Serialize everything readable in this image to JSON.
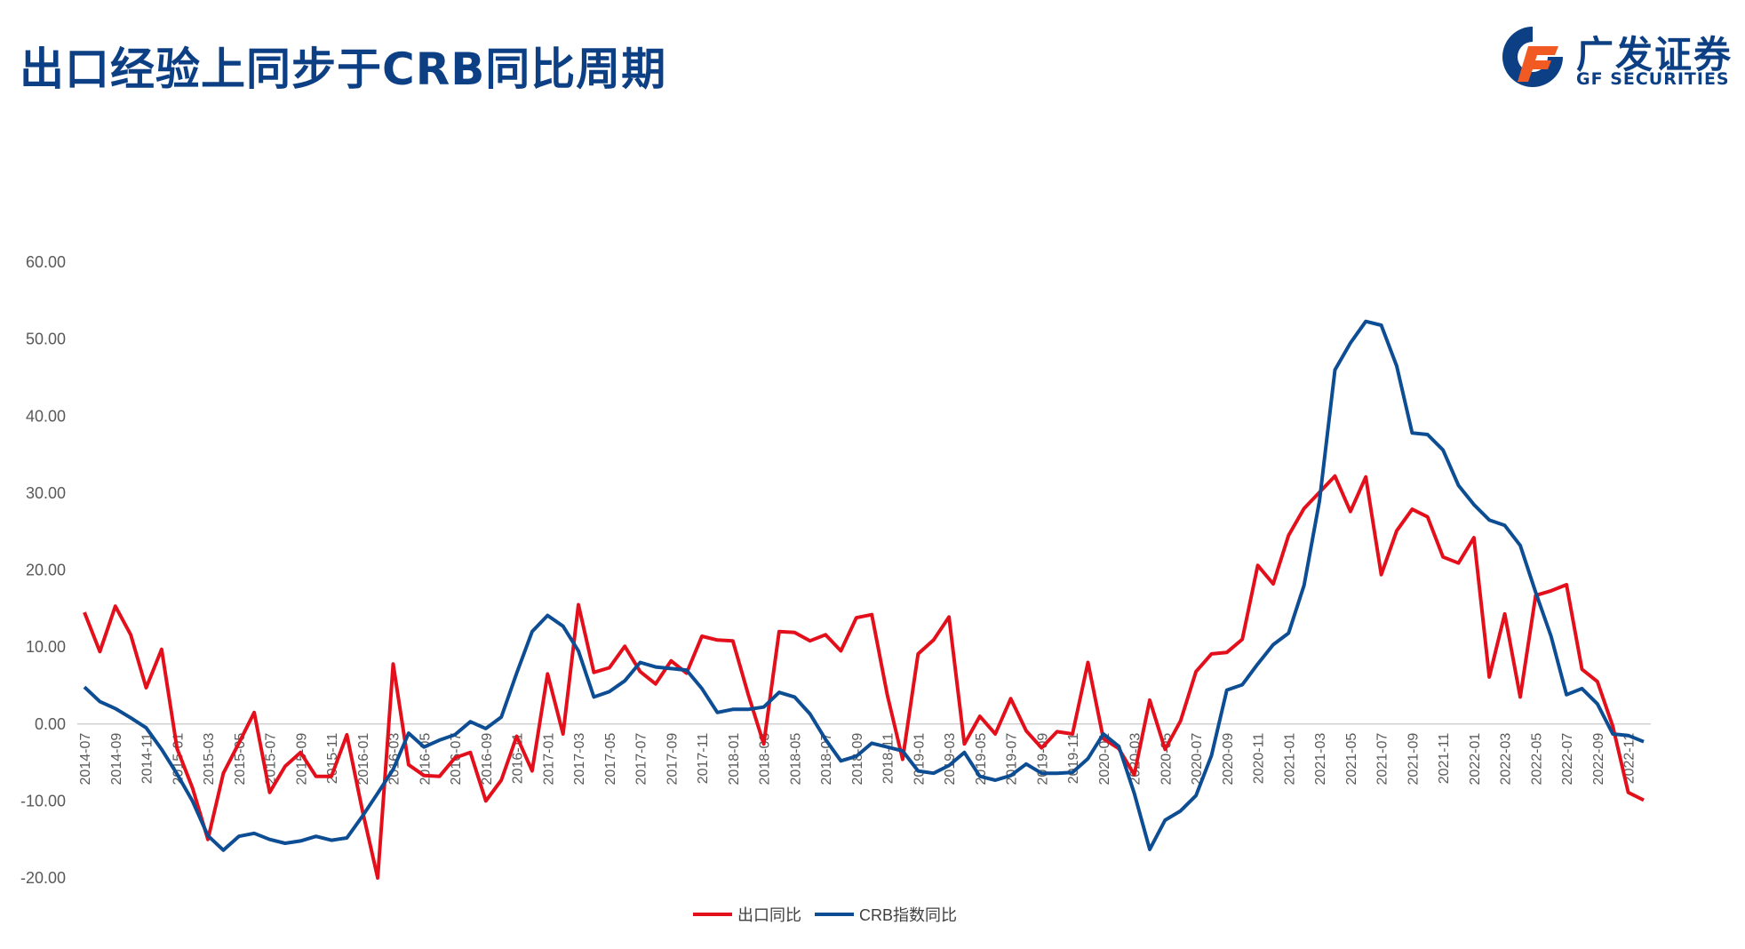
{
  "title": "出口经验上同步于CRB同比周期",
  "logo": {
    "cn": "广发证券",
    "en": "GF SECURITIES"
  },
  "colors": {
    "title": "#0c3f84",
    "export": "#e3101c",
    "crb": "#0c4d93",
    "logo_orange": "#f15a22"
  },
  "chart_data": {
    "type": "line",
    "ylim": [
      -20,
      60
    ],
    "yticks": [
      "60.00",
      "50.00",
      "40.00",
      "30.00",
      "20.00",
      "10.00",
      "0.00",
      "-10.00",
      "-20.00"
    ],
    "x_start": "2014-07",
    "x_end": "2022-12",
    "xtick_labels": [
      "2014-07",
      "2014-09",
      "2014-11",
      "2015-01",
      "2015-03",
      "2015-05",
      "2015-07",
      "2015-09",
      "2015-11",
      "2016-01",
      "2016-03",
      "2016-05",
      "2016-07",
      "2016-09",
      "2016-11",
      "2017-01",
      "2017-03",
      "2017-05",
      "2017-07",
      "2017-09",
      "2017-11",
      "2018-01",
      "2018-03",
      "2018-05",
      "2018-07",
      "2018-09",
      "2018-11",
      "2019-01",
      "2019-03",
      "2019-05",
      "2019-07",
      "2019-09",
      "2019-11",
      "2020-01",
      "2020-03",
      "2020-05",
      "2020-07",
      "2020-09",
      "2020-11",
      "2021-01",
      "2021-03",
      "2021-05",
      "2021-07",
      "2021-09",
      "2021-11",
      "2022-01",
      "2022-03",
      "2022-05",
      "2022-07",
      "2022-09",
      "2022-11"
    ],
    "series": [
      {
        "name": "出口同比",
        "values": [
          14.5,
          9.4,
          15.3,
          11.6,
          4.7,
          9.7,
          -3.2,
          -8.3,
          -15.0,
          -6.4,
          -2.5,
          1.5,
          -8.9,
          -5.5,
          -3.7,
          -6.8,
          -6.8,
          -1.4,
          -11.2,
          -25.4,
          7.8,
          -5.3,
          -6.7,
          -6.8,
          -4.4,
          -3.7,
          -10.0,
          -7.3,
          -1.6,
          -6.1,
          6.5,
          -1.3,
          15.5,
          6.7,
          7.3,
          10.1,
          6.8,
          5.2,
          8.2,
          6.6,
          11.4,
          10.9,
          10.8,
          3.8,
          -2.6,
          12.0,
          11.9,
          10.8,
          11.6,
          9.5,
          13.8,
          14.2,
          3.8,
          -4.6,
          9.1,
          10.9,
          13.9,
          -2.6,
          1.0,
          -1.3,
          3.3,
          -0.9,
          -3.1,
          -1.0,
          -1.3,
          8.0,
          -1.9,
          -3.2,
          -6.6,
          3.1,
          -3.3,
          0.4,
          6.8,
          9.1,
          9.3,
          11.0,
          20.6,
          18.2,
          24.5,
          28.0,
          30.1,
          32.2,
          27.6,
          32.1,
          19.4,
          25.1,
          27.9,
          26.9,
          21.7,
          20.9,
          24.2,
          6.1,
          14.3,
          3.5,
          16.7,
          17.3,
          18.1,
          7.1,
          5.5,
          -0.3,
          -8.9,
          -9.9
        ]
      },
      {
        "name": "CRB指数同比",
        "values": [
          4.8,
          2.9,
          2.0,
          0.8,
          -0.5,
          -3.3,
          -6.5,
          -10.0,
          -14.5,
          -16.4,
          -14.6,
          -14.2,
          -15.0,
          -15.5,
          -15.2,
          -14.6,
          -15.1,
          -14.8,
          -12.0,
          -9.0,
          -5.9,
          -1.2,
          -3.0,
          -2.1,
          -1.4,
          0.3,
          -0.6,
          0.9,
          6.6,
          12.0,
          14.1,
          12.7,
          9.5,
          3.5,
          4.2,
          5.6,
          8.0,
          7.4,
          7.2,
          7.0,
          4.6,
          1.5,
          1.9,
          1.9,
          2.2,
          4.1,
          3.5,
          1.3,
          -2.0,
          -4.8,
          -4.2,
          -2.5,
          -3.0,
          -3.5,
          -6.1,
          -6.4,
          -5.4,
          -3.7,
          -6.8,
          -7.3,
          -6.7,
          -5.2,
          -6.4,
          -6.4,
          -6.3,
          -4.5,
          -1.3,
          -2.9,
          -9.0,
          -16.3,
          -12.5,
          -11.3,
          -9.3,
          -4.1,
          4.4,
          5.1,
          7.8,
          10.3,
          11.8,
          18.0,
          29.0,
          46.0,
          49.5,
          52.3,
          51.8,
          46.5,
          37.8,
          37.6,
          35.6,
          31.0,
          28.5,
          26.5,
          25.8,
          23.2,
          17.1,
          11.4,
          3.8,
          4.6,
          2.6,
          -1.3,
          -1.5,
          -2.3
        ]
      }
    ],
    "legend_position": "bottom-center",
    "grid": false
  }
}
